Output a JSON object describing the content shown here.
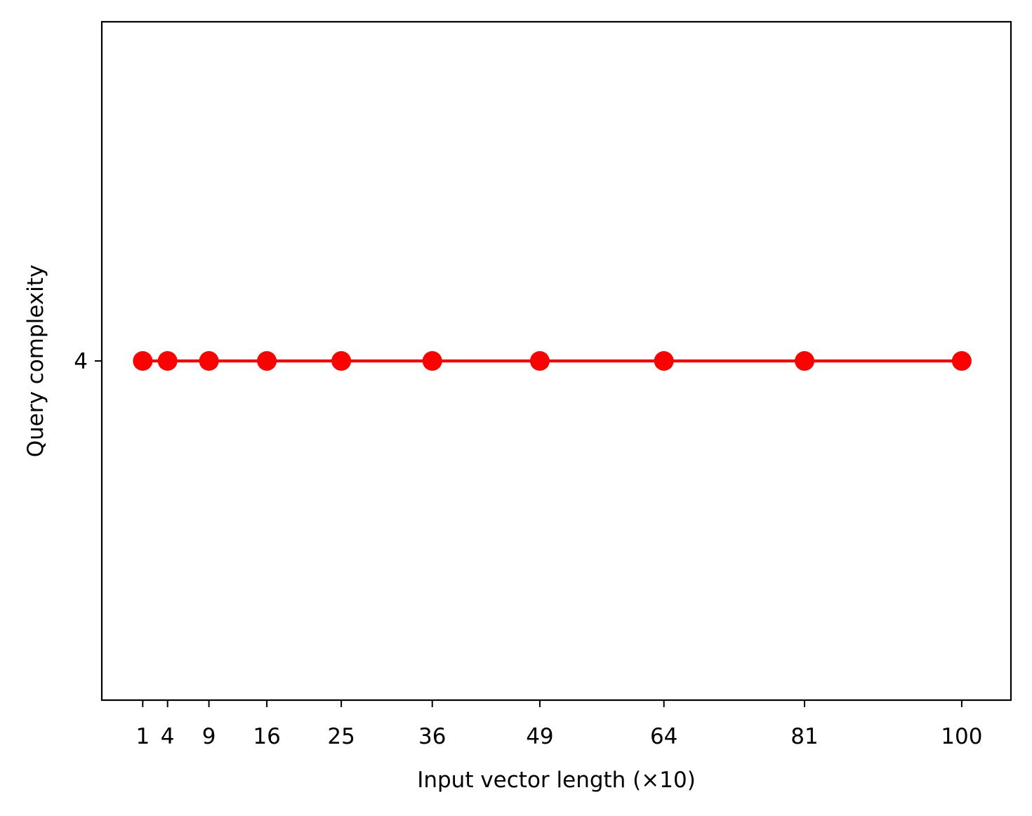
{
  "chart_data": {
    "type": "line",
    "title": "",
    "xlabel": "Input vector length (×10)",
    "ylabel": "Query complexity",
    "x": [
      1,
      4,
      9,
      16,
      25,
      36,
      49,
      64,
      81,
      100
    ],
    "xticks": [
      "1",
      "4",
      "9",
      "16",
      "25",
      "36",
      "49",
      "64",
      "81",
      "100"
    ],
    "yticks": [
      "4"
    ],
    "ytick_values": [
      4
    ],
    "series": [
      {
        "values": [
          4,
          4,
          4,
          4,
          4,
          4,
          4,
          4,
          4,
          4
        ],
        "color": "#ff0000",
        "marker": "circle"
      }
    ],
    "xlim": [
      -3.95,
      105.95
    ],
    "ylim": [
      3.8,
      4.2
    ],
    "grid": false,
    "legend": "none"
  }
}
